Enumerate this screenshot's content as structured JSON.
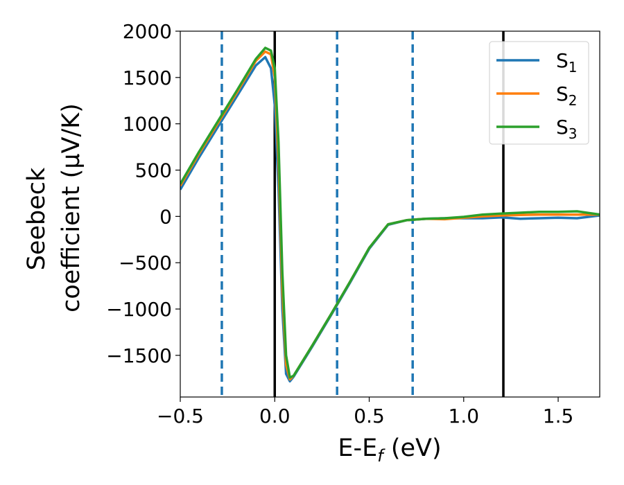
{
  "chart_data": {
    "type": "line",
    "title": "",
    "xlabel": "E-E",
    "xlabel_sub": "f",
    "xlabel_unit": "(eV)",
    "ylabel_line1": "Seebeck",
    "ylabel_line2": "coefficient  (μV/K)",
    "xlim": [
      -0.5,
      1.72
    ],
    "ylim": [
      -1950,
      2000
    ],
    "xticks": [
      -0.5,
      0.0,
      0.5,
      1.0,
      1.5
    ],
    "xtick_labels": [
      "−0.5",
      "0.0",
      "0.5",
      "1.0",
      "1.5"
    ],
    "yticks": [
      2000,
      1500,
      1000,
      500,
      0,
      -500,
      -1000,
      -1500
    ],
    "ytick_labels": [
      "2000",
      "1500",
      "1000",
      "500",
      "0",
      "−500",
      "−1000",
      "−1500"
    ],
    "grid": false,
    "legend_position": "top-right",
    "vlines_solid": [
      0.0,
      1.21
    ],
    "vlines_dashed": [
      -0.28,
      0.33,
      0.73
    ],
    "series": [
      {
        "name": "S",
        "sub": "1",
        "color": "#1f77b4",
        "x": [
          -0.5,
          -0.4,
          -0.3,
          -0.2,
          -0.1,
          -0.05,
          -0.02,
          0.0,
          0.02,
          0.04,
          0.06,
          0.08,
          0.1,
          0.2,
          0.3,
          0.4,
          0.5,
          0.6,
          0.7,
          0.8,
          0.9,
          1.0,
          1.1,
          1.2,
          1.3,
          1.4,
          1.5,
          1.6,
          1.72
        ],
        "y": [
          290,
          640,
          970,
          1300,
          1630,
          1720,
          1600,
          1200,
          300,
          -1000,
          -1700,
          -1780,
          -1730,
          -1400,
          -1060,
          -710,
          -350,
          -90,
          -40,
          -25,
          -20,
          -20,
          -20,
          -10,
          -25,
          -20,
          -15,
          -20,
          10
        ]
      },
      {
        "name": "S",
        "sub": "2",
        "color": "#ff7f0e",
        "x": [
          -0.5,
          -0.4,
          -0.3,
          -0.2,
          -0.1,
          -0.05,
          -0.02,
          0.0,
          0.02,
          0.04,
          0.06,
          0.08,
          0.1,
          0.2,
          0.3,
          0.4,
          0.5,
          0.6,
          0.7,
          0.8,
          0.9,
          1.0,
          1.1,
          1.2,
          1.3,
          1.4,
          1.5,
          1.6,
          1.72
        ],
        "y": [
          330,
          680,
          1010,
          1340,
          1680,
          1780,
          1750,
          1500,
          600,
          -800,
          -1600,
          -1760,
          -1720,
          -1390,
          -1050,
          -700,
          -340,
          -85,
          -40,
          -25,
          -30,
          -15,
          0,
          10,
          15,
          20,
          20,
          20,
          20
        ]
      },
      {
        "name": "S",
        "sub": "3",
        "color": "#2ca02c",
        "x": [
          -0.5,
          -0.4,
          -0.3,
          -0.2,
          -0.1,
          -0.05,
          -0.02,
          0.0,
          0.02,
          0.04,
          0.06,
          0.08,
          0.1,
          0.2,
          0.3,
          0.4,
          0.5,
          0.6,
          0.7,
          0.8,
          0.9,
          1.0,
          1.1,
          1.2,
          1.3,
          1.4,
          1.5,
          1.6,
          1.72
        ],
        "y": [
          350,
          700,
          1030,
          1360,
          1700,
          1820,
          1790,
          1600,
          800,
          -600,
          -1500,
          -1740,
          -1720,
          -1390,
          -1050,
          -700,
          -340,
          -85,
          -40,
          -25,
          -20,
          -5,
          20,
          30,
          40,
          50,
          50,
          55,
          20
        ]
      }
    ]
  }
}
